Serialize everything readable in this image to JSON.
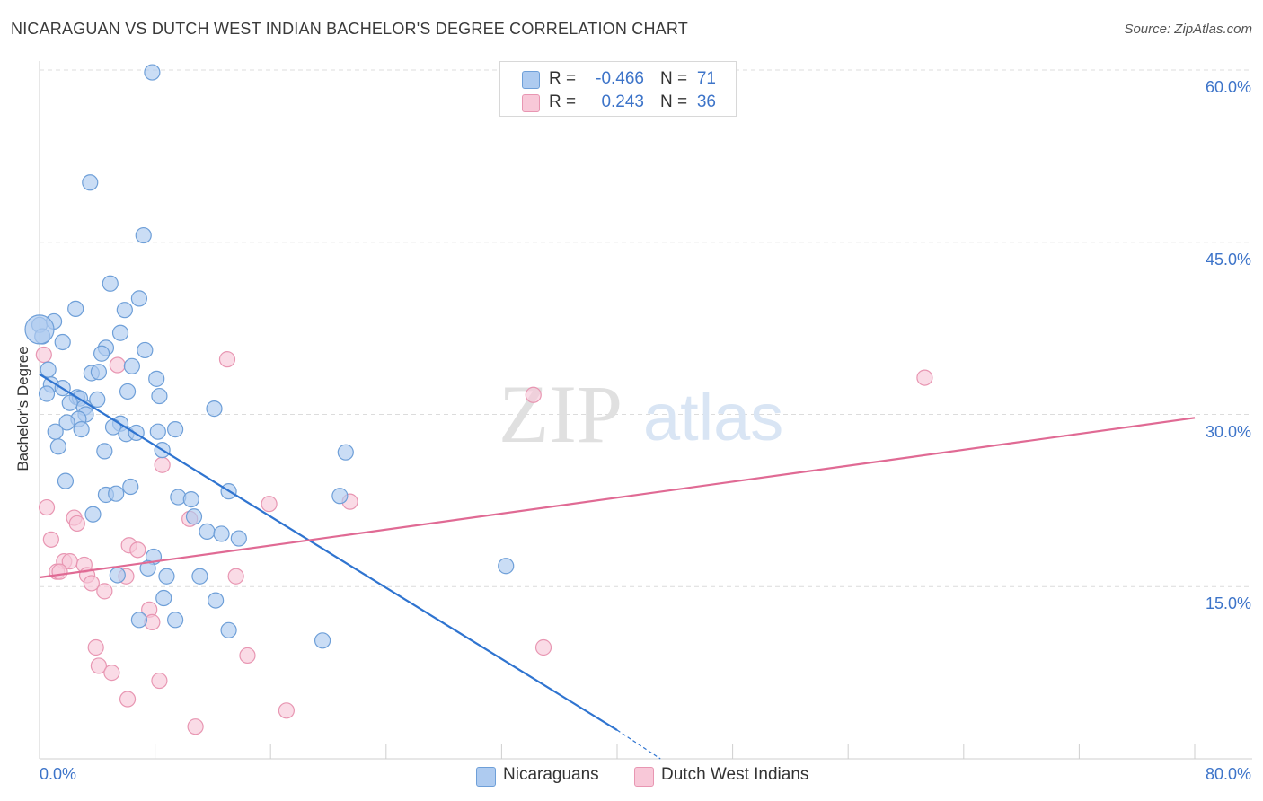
{
  "title": "NICARAGUAN VS DUTCH WEST INDIAN BACHELOR'S DEGREE CORRELATION CHART",
  "source": "Source: ZipAtlas.com",
  "watermark": {
    "zip": "ZIP",
    "atlas": "atlas"
  },
  "legend": {
    "series1": {
      "r_label": "R =",
      "r_value": "-0.466",
      "n_label": "N =",
      "n_value": "71"
    },
    "series2": {
      "r_label": "R =",
      "r_value": "0.243",
      "n_label": "N =",
      "n_value": "36"
    }
  },
  "colors": {
    "blue_fill": "#aecbf0",
    "blue_stroke": "#6e9fd8",
    "blue_line": "#2f74d0",
    "pink_fill": "#f8c8d8",
    "pink_stroke": "#e896b2",
    "pink_line": "#e06a94",
    "grid": "#dcdcdc",
    "axis_text": "#3d74c9"
  },
  "chart_data": {
    "type": "scatter",
    "title": "NICARAGUAN VS DUTCH WEST INDIAN BACHELOR'S DEGREE CORRELATION CHART",
    "xlabel": "",
    "ylabel": "Bachelor's Degree",
    "xlim": [
      0,
      80
    ],
    "ylim": [
      0,
      60
    ],
    "x_tick_labels": [
      "0.0%",
      "80.0%"
    ],
    "y_ticks": [
      15,
      30,
      45,
      60
    ],
    "y_tick_labels": [
      "15.0%",
      "30.0%",
      "45.0%",
      "60.0%"
    ],
    "grid": true,
    "legend_position": "top-center",
    "series": [
      {
        "name": "Nicaraguans",
        "r": -0.466,
        "n": 71,
        "points": [
          [
            7.8,
            59.8
          ],
          [
            3.5,
            50.2
          ],
          [
            7.2,
            45.6
          ],
          [
            4.9,
            41.4
          ],
          [
            6.9,
            40.1
          ],
          [
            2.5,
            39.2
          ],
          [
            5.9,
            39.1
          ],
          [
            0.0,
            37.8
          ],
          [
            1.0,
            38.1
          ],
          [
            0.2,
            36.8
          ],
          [
            1.6,
            36.3
          ],
          [
            5.6,
            37.1
          ],
          [
            4.6,
            35.8
          ],
          [
            7.3,
            35.6
          ],
          [
            4.3,
            35.3
          ],
          [
            6.4,
            34.2
          ],
          [
            0.6,
            33.9
          ],
          [
            3.6,
            33.6
          ],
          [
            4.1,
            33.7
          ],
          [
            8.1,
            33.1
          ],
          [
            0.8,
            32.6
          ],
          [
            1.6,
            32.3
          ],
          [
            6.1,
            32.0
          ],
          [
            0.5,
            31.8
          ],
          [
            2.6,
            31.5
          ],
          [
            2.8,
            31.4
          ],
          [
            8.3,
            31.6
          ],
          [
            4.0,
            31.3
          ],
          [
            2.1,
            31.0
          ],
          [
            3.1,
            30.6
          ],
          [
            12.1,
            30.5
          ],
          [
            3.2,
            30.0
          ],
          [
            2.7,
            29.6
          ],
          [
            1.9,
            29.3
          ],
          [
            5.6,
            29.2
          ],
          [
            5.1,
            28.9
          ],
          [
            2.9,
            28.7
          ],
          [
            9.4,
            28.7
          ],
          [
            1.1,
            28.5
          ],
          [
            8.2,
            28.5
          ],
          [
            6.0,
            28.3
          ],
          [
            6.7,
            28.4
          ],
          [
            1.3,
            27.2
          ],
          [
            8.5,
            26.9
          ],
          [
            4.5,
            26.8
          ],
          [
            21.2,
            26.7
          ],
          [
            1.8,
            24.2
          ],
          [
            6.3,
            23.7
          ],
          [
            13.1,
            23.3
          ],
          [
            4.6,
            23.0
          ],
          [
            5.3,
            23.1
          ],
          [
            9.6,
            22.8
          ],
          [
            10.5,
            22.6
          ],
          [
            20.8,
            22.9
          ],
          [
            3.7,
            21.3
          ],
          [
            10.7,
            21.1
          ],
          [
            11.6,
            19.8
          ],
          [
            12.6,
            19.6
          ],
          [
            13.8,
            19.2
          ],
          [
            7.9,
            17.6
          ],
          [
            32.3,
            16.8
          ],
          [
            7.5,
            16.6
          ],
          [
            5.4,
            16.0
          ],
          [
            8.8,
            15.9
          ],
          [
            11.1,
            15.9
          ],
          [
            8.6,
            14.0
          ],
          [
            12.2,
            13.8
          ],
          [
            6.9,
            12.1
          ],
          [
            9.4,
            12.1
          ],
          [
            13.1,
            11.2
          ],
          [
            19.6,
            10.3
          ]
        ],
        "trend": {
          "x1": 0,
          "y1": 33.5,
          "x2": 40,
          "y2": 2.5,
          "dashed_to_x": 43,
          "dashed_to_y": 0
        }
      },
      {
        "name": "Dutch West Indians",
        "r": 0.243,
        "n": 36,
        "points": [
          [
            0.3,
            35.2
          ],
          [
            13.0,
            34.8
          ],
          [
            5.4,
            34.3
          ],
          [
            61.3,
            33.2
          ],
          [
            34.2,
            31.7
          ],
          [
            8.5,
            25.6
          ],
          [
            0.5,
            21.9
          ],
          [
            15.9,
            22.2
          ],
          [
            21.5,
            22.4
          ],
          [
            10.4,
            20.9
          ],
          [
            2.4,
            21.0
          ],
          [
            2.6,
            20.5
          ],
          [
            0.8,
            19.1
          ],
          [
            6.2,
            18.6
          ],
          [
            6.8,
            18.2
          ],
          [
            1.7,
            17.2
          ],
          [
            2.1,
            17.2
          ],
          [
            3.1,
            16.9
          ],
          [
            1.2,
            16.3
          ],
          [
            1.4,
            16.3
          ],
          [
            3.3,
            16.0
          ],
          [
            6.0,
            15.9
          ],
          [
            13.6,
            15.9
          ],
          [
            3.6,
            15.3
          ],
          [
            4.5,
            14.6
          ],
          [
            7.6,
            13.0
          ],
          [
            7.8,
            11.9
          ],
          [
            3.9,
            9.7
          ],
          [
            34.9,
            9.7
          ],
          [
            14.4,
            9.0
          ],
          [
            4.1,
            8.1
          ],
          [
            5.0,
            7.5
          ],
          [
            8.3,
            6.8
          ],
          [
            6.1,
            5.2
          ],
          [
            17.1,
            4.2
          ],
          [
            10.8,
            2.8
          ]
        ],
        "trend": {
          "x1": 0,
          "y1": 15.8,
          "x2": 80,
          "y2": 29.7
        }
      }
    ]
  }
}
